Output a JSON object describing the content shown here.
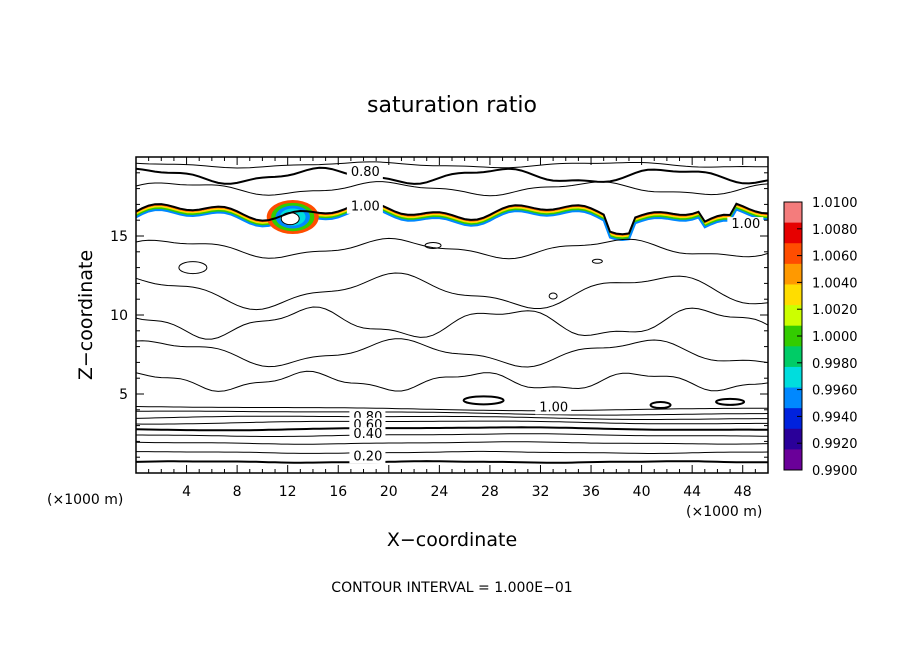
{
  "chart_data": {
    "type": "contour",
    "title": "saturation ratio",
    "xlabel": "X−coordinate",
    "ylabel": "Z−coordinate",
    "x_unit": "(×1000 m)",
    "y_unit": "(×1000 m)",
    "xlim": [
      0,
      50
    ],
    "ylim": [
      0,
      20
    ],
    "x_ticks": [
      4,
      8,
      12,
      16,
      20,
      24,
      28,
      32,
      36,
      40,
      44,
      48
    ],
    "y_ticks": [
      5,
      10,
      15
    ],
    "footer": "CONTOUR INTERVAL = 1.000E−01",
    "contour_interval": 0.1,
    "contour_labels": [
      {
        "text": "0.80",
        "x": 17.0,
        "y": 18.8
      },
      {
        "text": "1.00",
        "x": 17.0,
        "y": 16.6
      },
      {
        "text": "1.00",
        "x": 47.1,
        "y": 15.5
      },
      {
        "text": "1.00",
        "x": 31.9,
        "y": 3.9
      },
      {
        "text": "0.80",
        "x": 17.2,
        "y": 3.3
      },
      {
        "text": "0.60",
        "x": 17.2,
        "y": 2.8
      },
      {
        "text": "0.40",
        "x": 17.2,
        "y": 2.2
      },
      {
        "text": "0.20",
        "x": 17.2,
        "y": 0.8
      }
    ],
    "colorbar": {
      "ticks": [
        "1.0100",
        "1.0080",
        "1.0060",
        "1.0040",
        "1.0020",
        "1.0000",
        "0.9980",
        "0.9960",
        "0.9940",
        "0.9920",
        "0.9900"
      ],
      "colors": [
        "#f47c7c",
        "#e60000",
        "#ff4d00",
        "#ff9900",
        "#ffdd00",
        "#ccff00",
        "#33cc00",
        "#00cc66",
        "#00dddd",
        "#0088ff",
        "#0022dd",
        "#2a0099",
        "#6a0099"
      ]
    }
  }
}
